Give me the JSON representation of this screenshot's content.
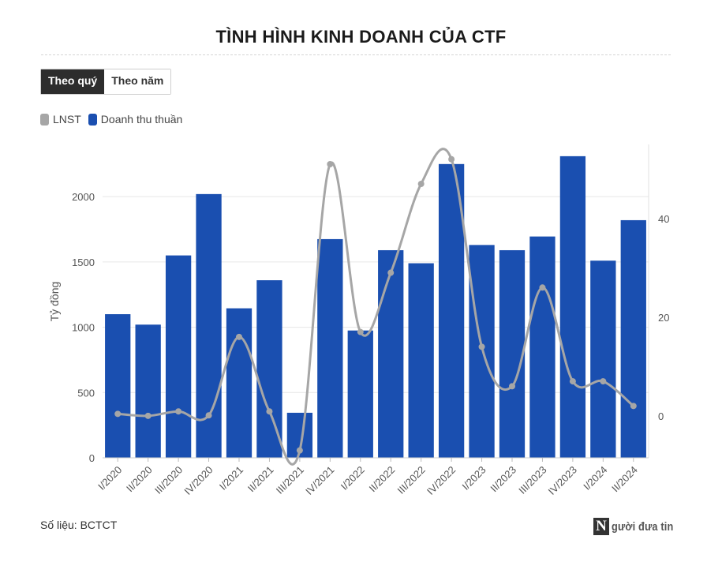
{
  "tabs": [
    {
      "label": "Theo quý",
      "active": true
    },
    {
      "label": "Theo năm",
      "active": false
    }
  ],
  "source_text": "Số liệu: BCTCT",
  "logo_text": "gười đưa tin",
  "logo_letter": "N",
  "colors": {
    "revenue": "#1a4fb0",
    "profit": "#a6a6a6"
  },
  "chart_data": {
    "type": "bar",
    "title": "TÌNH HÌNH KINH DOANH CỦA CTF",
    "ylabel": "Tỷ đồng",
    "categories": [
      "I/2020",
      "II/2020",
      "III/2020",
      "IV/2020",
      "I/2021",
      "II/2021",
      "III/2021",
      "IV/2021",
      "I/2022",
      "II/2022",
      "III/2022",
      "IV/2022",
      "I/2023",
      "II/2023",
      "III/2023",
      "IV/2023",
      "I/2024",
      "II/2024"
    ],
    "ylim": [
      0,
      2400
    ],
    "y2lim": [
      -8.5,
      55
    ],
    "yticks": [
      0,
      500,
      1000,
      1500,
      2000
    ],
    "y2ticks": [
      0,
      20,
      40
    ],
    "legend_position": "top-left",
    "series": [
      {
        "name": "LNST",
        "type": "line",
        "axis": "right",
        "values": [
          0.4,
          0,
          0.9,
          0.1,
          16,
          0.9,
          -7,
          51,
          17,
          29,
          47,
          52,
          14,
          6,
          26,
          7,
          7,
          2
        ]
      },
      {
        "name": "Doanh thu thuần",
        "type": "bar",
        "axis": "left",
        "values": [
          1100,
          1020,
          1550,
          2020,
          1145,
          1360,
          345,
          1675,
          975,
          1590,
          1490,
          2250,
          1630,
          1590,
          1695,
          2310,
          1510,
          1820
        ]
      }
    ]
  }
}
